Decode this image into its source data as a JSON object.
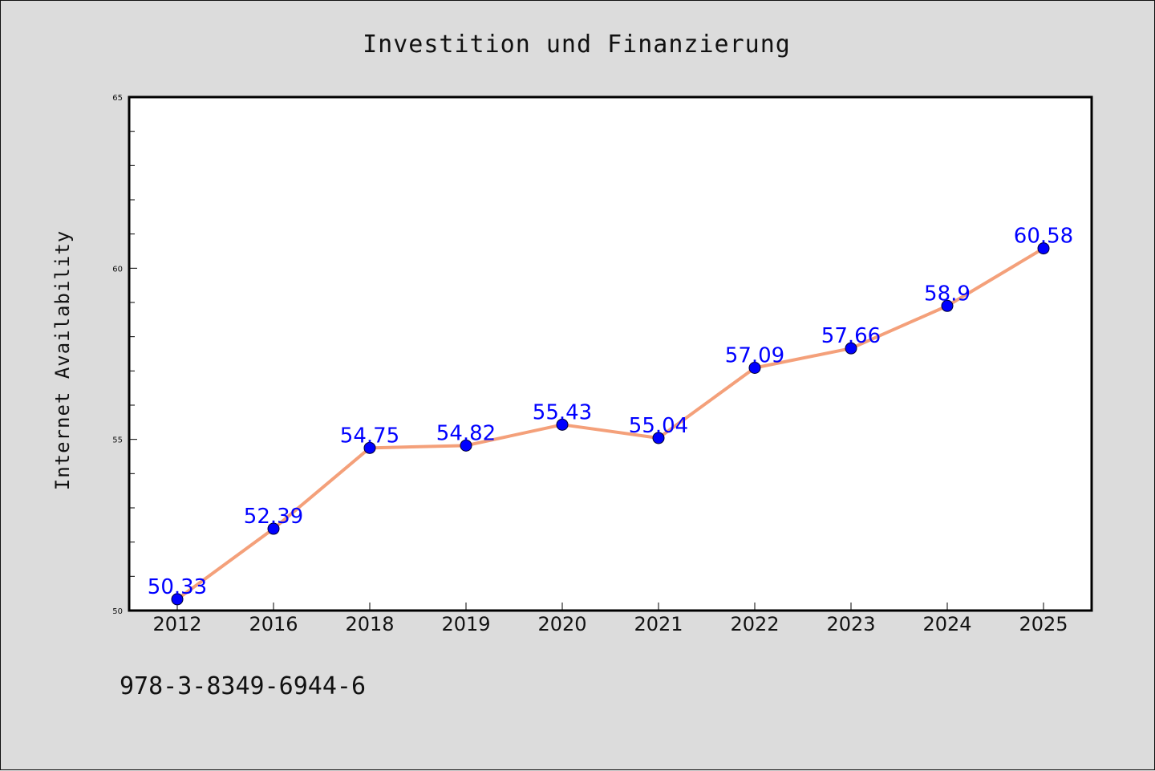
{
  "chart_data": {
    "type": "line",
    "title": "Investition und Finanzierung",
    "xlabel": "",
    "ylabel": "Internet Availability",
    "categories": [
      "2012",
      "2016",
      "2018",
      "2019",
      "2020",
      "2021",
      "2022",
      "2023",
      "2024",
      "2025"
    ],
    "series": [
      {
        "values": [
          50.33,
          52.39,
          54.75,
          54.82,
          55.43,
          55.04,
          57.09,
          57.66,
          58.9,
          60.58
        ],
        "data_labels": [
          "50.33",
          "52.39",
          "54.75",
          "54.82",
          "55.43",
          "55.04",
          "57.09",
          "57.66",
          "58.9",
          "60.58"
        ],
        "line_color": "#f4a07a",
        "marker_color": "#0000ff"
      }
    ],
    "ylim": [
      50,
      65
    ],
    "yticks": [
      "50",
      "55",
      "60",
      "65"
    ],
    "grid": false,
    "data_label_color": "#0000ff"
  },
  "footer_text": "978-3-8349-6944-6",
  "colors": {
    "background": "#dcdcdc",
    "plot_background": "#ffffff"
  }
}
